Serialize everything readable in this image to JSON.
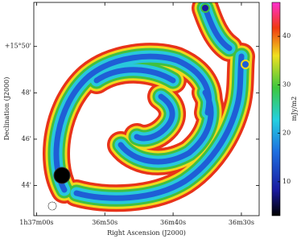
{
  "chart_data": {
    "type": "image",
    "x_label": "Right Ascension (J2000)",
    "y_label": "Declination (J2000)",
    "colorbar_label": "mJy/m2",
    "xlim": [
      0.4,
      -32.6
    ],
    "xticks": [
      {
        "value": 0,
        "label": "1h37m00s"
      },
      {
        "value": -10,
        "label": "36m50s"
      },
      {
        "value": -20,
        "label": "36m40s"
      },
      {
        "value": -30,
        "label": "36m30s"
      }
    ],
    "ylim": [
      42.7,
      51.9
    ],
    "yticks": [
      {
        "value": 50,
        "label": "+15°50'"
      },
      {
        "value": 48,
        "label": "48'"
      },
      {
        "value": 46,
        "label": "46'"
      },
      {
        "value": 44,
        "label": "44'"
      }
    ],
    "clim": [
      3,
      47
    ],
    "cticks": [
      10,
      20,
      30,
      40
    ]
  }
}
